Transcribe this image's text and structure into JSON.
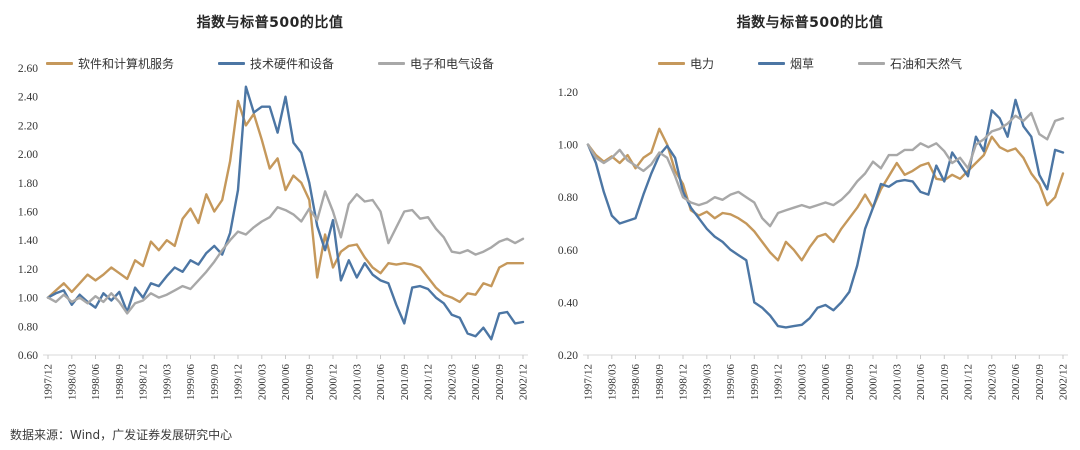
{
  "footer": {
    "source": "数据来源：Wind，广发证券发展研究中心"
  },
  "colors": {
    "orange": "#C5985B",
    "blue": "#4C76A4",
    "gray": "#A8A8A8",
    "axis": "#D9D9D9",
    "tick": "#C9C9C9"
  },
  "chart_data": [
    {
      "type": "line",
      "title": "指数与标普500的比值",
      "xlabel": "",
      "ylabel": "",
      "ylim": [
        0.6,
        2.6
      ],
      "y_step": 0.2,
      "grid": false,
      "legend_position": "top",
      "tick_every": 3,
      "x_tick_labels": [
        "1997/12",
        "1998/03",
        "1998/06",
        "1998/09",
        "1998/12",
        "1999/03",
        "1999/06",
        "1999/09",
        "1999/12",
        "2000/03",
        "2000/06",
        "2000/09",
        "2000/12",
        "2001/03",
        "2001/06",
        "2001/09",
        "2001/12",
        "2002/03",
        "2002/06",
        "2002/09",
        "2002/12"
      ],
      "series": [
        {
          "name": "软件和计算机服务",
          "color": "#C5985B",
          "values": [
            1.0,
            1.05,
            1.1,
            1.04,
            1.1,
            1.16,
            1.12,
            1.16,
            1.21,
            1.17,
            1.13,
            1.26,
            1.22,
            1.39,
            1.33,
            1.4,
            1.36,
            1.55,
            1.62,
            1.52,
            1.72,
            1.6,
            1.68,
            1.95,
            2.37,
            2.2,
            2.28,
            2.1,
            1.9,
            1.97,
            1.75,
            1.85,
            1.8,
            1.68,
            1.14,
            1.44,
            1.21,
            1.32,
            1.36,
            1.37,
            1.28,
            1.21,
            1.17,
            1.24,
            1.23,
            1.24,
            1.23,
            1.21,
            1.14,
            1.07,
            1.02,
            1.0,
            0.97,
            1.03,
            1.02,
            1.1,
            1.08,
            1.21,
            1.24,
            1.24,
            1.24
          ]
        },
        {
          "name": "技术硬件和设备",
          "color": "#4C76A4",
          "values": [
            1.0,
            1.03,
            1.05,
            0.95,
            1.02,
            0.97,
            0.93,
            1.03,
            0.98,
            1.04,
            0.9,
            1.07,
            1.0,
            1.1,
            1.08,
            1.15,
            1.21,
            1.18,
            1.26,
            1.23,
            1.31,
            1.36,
            1.3,
            1.45,
            1.75,
            2.47,
            2.29,
            2.33,
            2.33,
            2.15,
            2.4,
            2.08,
            2.01,
            1.8,
            1.5,
            1.33,
            1.54,
            1.12,
            1.26,
            1.14,
            1.24,
            1.16,
            1.12,
            1.1,
            0.95,
            0.82,
            1.07,
            1.08,
            1.06,
            1.0,
            0.96,
            0.88,
            0.86,
            0.75,
            0.73,
            0.79,
            0.71,
            0.89,
            0.9,
            0.82,
            0.83
          ]
        },
        {
          "name": "电子和电气设备",
          "color": "#A8A8A8",
          "values": [
            1.0,
            0.97,
            1.02,
            0.97,
            1.0,
            0.96,
            1.01,
            0.97,
            1.03,
            0.97,
            0.89,
            0.96,
            0.98,
            1.03,
            1.0,
            1.02,
            1.05,
            1.08,
            1.06,
            1.12,
            1.18,
            1.25,
            1.33,
            1.4,
            1.46,
            1.44,
            1.49,
            1.53,
            1.56,
            1.63,
            1.61,
            1.58,
            1.53,
            1.62,
            1.54,
            1.74,
            1.6,
            1.42,
            1.65,
            1.72,
            1.67,
            1.68,
            1.6,
            1.38,
            1.49,
            1.6,
            1.61,
            1.55,
            1.56,
            1.48,
            1.42,
            1.32,
            1.31,
            1.33,
            1.3,
            1.32,
            1.35,
            1.39,
            1.41,
            1.38,
            1.41
          ]
        }
      ]
    },
    {
      "type": "line",
      "title": "指数与标普500的比值",
      "xlabel": "",
      "ylabel": "",
      "ylim": [
        0.2,
        1.2
      ],
      "y_step": 0.2,
      "grid": false,
      "legend_position": "top",
      "tick_every": 3,
      "x_tick_labels": [
        "1997/12",
        "1998/03",
        "1998/06",
        "1998/09",
        "1998/12",
        "1999/03",
        "1999/06",
        "1999/09",
        "1999/12",
        "2000/03",
        "2000/06",
        "2000/09",
        "2000/12",
        "2001/03",
        "2001/06",
        "2001/09",
        "2001/12",
        "2002/03",
        "2002/06",
        "2002/09",
        "2002/12"
      ],
      "series": [
        {
          "name": "电力",
          "color": "#C5985B",
          "values": [
            1.0,
            0.96,
            0.935,
            0.955,
            0.93,
            0.96,
            0.91,
            0.95,
            0.97,
            1.06,
            1.0,
            0.9,
            0.85,
            0.75,
            0.73,
            0.745,
            0.72,
            0.74,
            0.735,
            0.72,
            0.7,
            0.67,
            0.63,
            0.59,
            0.56,
            0.63,
            0.6,
            0.56,
            0.61,
            0.65,
            0.66,
            0.63,
            0.68,
            0.72,
            0.76,
            0.81,
            0.76,
            0.83,
            0.88,
            0.93,
            0.885,
            0.9,
            0.92,
            0.93,
            0.87,
            0.865,
            0.885,
            0.87,
            0.9,
            0.93,
            0.96,
            1.03,
            0.99,
            0.975,
            0.985,
            0.95,
            0.89,
            0.85,
            0.77,
            0.8,
            0.89
          ]
        },
        {
          "name": "烟草",
          "color": "#4C76A4",
          "values": [
            1.0,
            0.93,
            0.82,
            0.73,
            0.7,
            0.71,
            0.72,
            0.81,
            0.89,
            0.96,
            0.995,
            0.95,
            0.82,
            0.76,
            0.72,
            0.68,
            0.65,
            0.63,
            0.6,
            0.58,
            0.56,
            0.4,
            0.38,
            0.35,
            0.31,
            0.305,
            0.31,
            0.315,
            0.34,
            0.38,
            0.39,
            0.37,
            0.4,
            0.44,
            0.54,
            0.68,
            0.76,
            0.85,
            0.84,
            0.86,
            0.865,
            0.86,
            0.82,
            0.81,
            0.92,
            0.86,
            0.97,
            0.925,
            0.88,
            1.03,
            0.975,
            1.13,
            1.1,
            1.03,
            1.17,
            1.07,
            1.03,
            0.885,
            0.83,
            0.98,
            0.97
          ]
        },
        {
          "name": "石油和天然气",
          "color": "#A8A8A8",
          "values": [
            1.0,
            0.95,
            0.93,
            0.95,
            0.98,
            0.94,
            0.92,
            0.9,
            0.925,
            0.97,
            0.95,
            0.88,
            0.8,
            0.78,
            0.77,
            0.78,
            0.8,
            0.79,
            0.81,
            0.82,
            0.8,
            0.78,
            0.72,
            0.69,
            0.74,
            0.75,
            0.76,
            0.77,
            0.76,
            0.77,
            0.78,
            0.77,
            0.79,
            0.82,
            0.86,
            0.89,
            0.935,
            0.91,
            0.96,
            0.96,
            0.98,
            0.98,
            1.005,
            0.99,
            1.005,
            0.975,
            0.93,
            0.95,
            0.91,
            1.0,
            1.02,
            1.05,
            1.06,
            1.08,
            1.11,
            1.09,
            1.12,
            1.04,
            1.02,
            1.09,
            1.1
          ]
        }
      ]
    }
  ]
}
